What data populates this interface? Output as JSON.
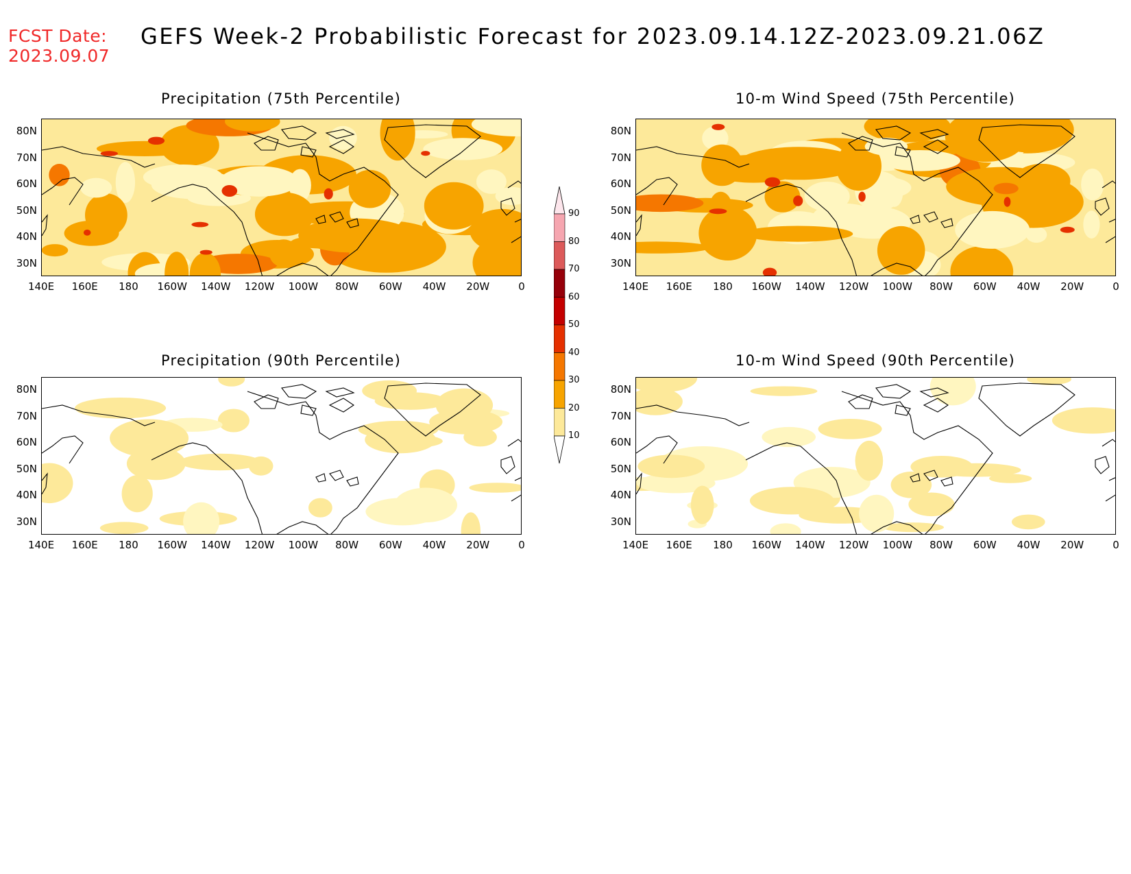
{
  "header": {
    "fcst_label": "FCST Date:",
    "fcst_date": "2023.09.07",
    "title": "GEFS Week-2 Probabilistic Forecast for 2023.09.14.12Z-2023.09.21.06Z"
  },
  "axes": {
    "lat_ticks": [
      "80N",
      "70N",
      "60N",
      "50N",
      "40N",
      "30N"
    ],
    "lon_ticks": [
      "140E",
      "160E",
      "180",
      "160W",
      "140W",
      "120W",
      "100W",
      "80W",
      "60W",
      "40W",
      "20W",
      "0"
    ]
  },
  "panels": [
    {
      "title": "Precipitation (75th Percentile)",
      "intensity": "high"
    },
    {
      "title": "10-m Wind Speed (75th Percentile)",
      "intensity": "high"
    },
    {
      "title": "Precipitation (90th Percentile)",
      "intensity": "low"
    },
    {
      "title": "10-m Wind Speed (90th Percentile)",
      "intensity": "low"
    }
  ],
  "colorbar": {
    "levels": [
      "10",
      "20",
      "30",
      "40",
      "50",
      "60",
      "70",
      "80",
      "90"
    ],
    "colors": [
      "#fff6c0",
      "#fde99a",
      "#f7a400",
      "#f57700",
      "#e53000",
      "#c40000",
      "#96000a",
      "#dc5a5a",
      "#f6a6b0",
      "#fde6ec"
    ]
  }
}
